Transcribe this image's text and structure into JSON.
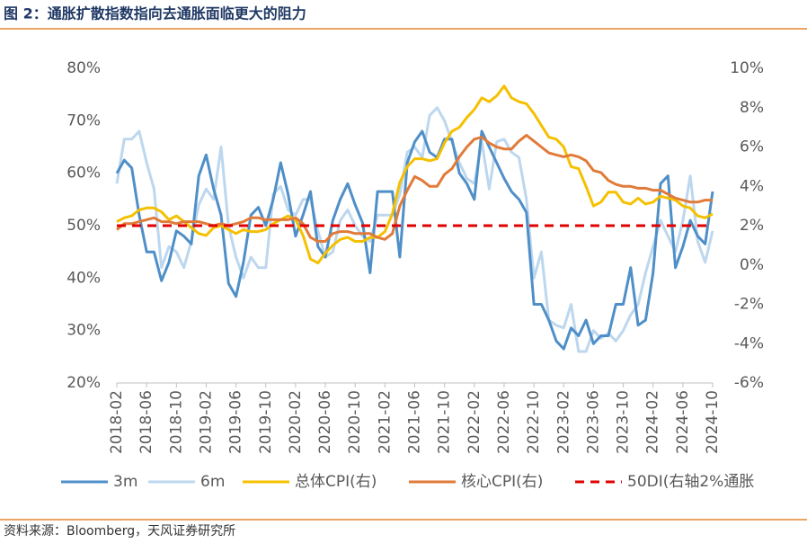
{
  "chart_data": {
    "type": "line",
    "title": "图 2：通胀扩散指数指向去通胀面临更大的阻力",
    "source": "资料来源：Bloomberg，天风证券研究所",
    "categories": [
      "2018-02",
      null,
      null,
      null,
      "2018-06",
      null,
      null,
      null,
      "2018-10",
      null,
      null,
      null,
      "2019-02",
      null,
      null,
      null,
      "2019-06",
      null,
      null,
      null,
      "2019-10",
      null,
      null,
      null,
      "2020-02",
      null,
      null,
      null,
      "2020-06",
      null,
      null,
      null,
      "2020-10",
      null,
      null,
      null,
      "2021-02",
      null,
      null,
      null,
      "2021-06",
      null,
      null,
      null,
      "2021-10",
      null,
      null,
      null,
      "2022-02",
      null,
      null,
      null,
      "2022-06",
      null,
      null,
      null,
      "2022-10",
      null,
      null,
      null,
      "2023-02",
      null,
      null,
      null,
      "2023-06",
      null,
      null,
      null,
      "2023-10",
      null,
      null,
      null,
      "2024-02",
      null,
      null,
      null,
      "2024-06",
      null,
      null,
      null,
      "2024-10"
    ],
    "ylim": [
      20,
      80
    ],
    "yticks": [
      {
        "value": 20,
        "label": "20%"
      },
      {
        "value": 30,
        "label": "30%"
      },
      {
        "value": 40,
        "label": "40%"
      },
      {
        "value": 50,
        "label": "50%"
      },
      {
        "value": 60,
        "label": "60%"
      },
      {
        "value": 70,
        "label": "70%"
      },
      {
        "value": 80,
        "label": "80%"
      }
    ],
    "y2lim": [
      -6,
      10
    ],
    "y2ticks": [
      {
        "value": -6,
        "label": "-6%"
      },
      {
        "value": -4,
        "label": "-4%"
      },
      {
        "value": -2,
        "label": "-2%"
      },
      {
        "value": 0,
        "label": "0%"
      },
      {
        "value": 2,
        "label": "2%"
      },
      {
        "value": 4,
        "label": "4%"
      },
      {
        "value": 6,
        "label": "6%"
      },
      {
        "value": 8,
        "label": "8%"
      },
      {
        "value": 10,
        "label": "10%"
      }
    ],
    "series": [
      {
        "name": "3m",
        "color": "#4f8fc8",
        "values": [
          60,
          62.5,
          61,
          52,
          45,
          45,
          39.5,
          43,
          49,
          48,
          46.5,
          59.5,
          63.5,
          57,
          52,
          39,
          36.5,
          43,
          52,
          53.5,
          50,
          55,
          62,
          56,
          48,
          52,
          56.5,
          46,
          44,
          51,
          55,
          58,
          54,
          50.5,
          41,
          56.5,
          56.5,
          56.5,
          44,
          62,
          66,
          68,
          64,
          63,
          66.5,
          66.5,
          60,
          58,
          55,
          68,
          65,
          62,
          59,
          56.5,
          55,
          52.5,
          35,
          35,
          32,
          28,
          26.5,
          30.5,
          29,
          32,
          27.5,
          29,
          29,
          35,
          35,
          42,
          31,
          32,
          41,
          58,
          59.5,
          42,
          46,
          51,
          48,
          46.5,
          56.5
        ]
      },
      {
        "name": "6m",
        "color": "#bdd7ee",
        "values": [
          58,
          66.5,
          66.5,
          68,
          62,
          57,
          42,
          46,
          45,
          42,
          47,
          54,
          57,
          55,
          65,
          50,
          44,
          40,
          44,
          42,
          42,
          56,
          57.5,
          53,
          52,
          55,
          55,
          49,
          44,
          45,
          51,
          53,
          50,
          48,
          47,
          52,
          52,
          52,
          56,
          64,
          65,
          63,
          71,
          72.5,
          70,
          66,
          62,
          59,
          58,
          66,
          57,
          66,
          66.5,
          64,
          63,
          55,
          40,
          45,
          32,
          31,
          30.5,
          35,
          26,
          26,
          30,
          28.5,
          29.5,
          28,
          30,
          33,
          35,
          41,
          46,
          51,
          48,
          45,
          51,
          59.5,
          47,
          43,
          49
        ]
      },
      {
        "name": "总体CPI(右)",
        "color": "#f5c000",
        "axis": "y2",
        "values": [
          2.2,
          2.4,
          2.5,
          2.8,
          2.9,
          2.9,
          2.7,
          2.3,
          2.5,
          2.2,
          1.9,
          1.6,
          1.5,
          1.9,
          2.0,
          1.8,
          1.6,
          1.8,
          1.7,
          1.7,
          1.8,
          2.1,
          2.3,
          2.5,
          2.3,
          1.5,
          0.3,
          0.1,
          0.6,
          1.0,
          1.3,
          1.4,
          1.2,
          1.2,
          1.4,
          1.4,
          1.7,
          2.6,
          4.2,
          5.0,
          5.4,
          5.4,
          5.3,
          5.4,
          6.2,
          6.8,
          7.0,
          7.5,
          7.9,
          8.5,
          8.3,
          8.6,
          9.1,
          8.5,
          8.3,
          8.2,
          7.7,
          7.1,
          6.5,
          6.4,
          6.0,
          5.0,
          4.9,
          4.0,
          3.0,
          3.2,
          3.7,
          3.7,
          3.2,
          3.1,
          3.4,
          3.1,
          3.2,
          3.5,
          3.4,
          3.3,
          3.0,
          2.9,
          2.5,
          2.4,
          2.6
        ]
      },
      {
        "name": "核心CPI(右)",
        "color": "#e07b39",
        "axis": "y2",
        "values": [
          1.8,
          2.1,
          2.1,
          2.2,
          2.3,
          2.4,
          2.2,
          2.2,
          2.1,
          2.2,
          2.2,
          2.2,
          2.1,
          2.0,
          2.1,
          2.0,
          2.1,
          2.2,
          2.4,
          2.4,
          2.3,
          2.3,
          2.3,
          2.3,
          2.4,
          2.1,
          1.4,
          1.2,
          1.2,
          1.6,
          1.7,
          1.7,
          1.6,
          1.6,
          1.6,
          1.4,
          1.3,
          1.6,
          3.0,
          3.8,
          4.5,
          4.3,
          4.0,
          4.0,
          4.6,
          4.9,
          5.5,
          6.0,
          6.4,
          6.5,
          6.2,
          6.0,
          5.9,
          5.9,
          6.3,
          6.6,
          6.3,
          6.0,
          5.7,
          5.6,
          5.5,
          5.6,
          5.5,
          5.3,
          4.8,
          4.7,
          4.3,
          4.1,
          4.0,
          4.0,
          3.9,
          3.9,
          3.8,
          3.8,
          3.6,
          3.4,
          3.3,
          3.2,
          3.2,
          3.3,
          3.3
        ]
      },
      {
        "name": "50DI(右轴2%通胀",
        "color": "#e00000",
        "axis": "y2",
        "dashed": true,
        "values": [
          2,
          2,
          2,
          2,
          2,
          2,
          2,
          2,
          2,
          2,
          2,
          2,
          2,
          2,
          2,
          2,
          2,
          2,
          2,
          2,
          2,
          2,
          2,
          2,
          2,
          2,
          2,
          2,
          2,
          2,
          2,
          2,
          2,
          2,
          2,
          2,
          2,
          2,
          2,
          2,
          2,
          2,
          2,
          2,
          2,
          2,
          2,
          2,
          2,
          2,
          2,
          2,
          2,
          2,
          2,
          2,
          2,
          2,
          2,
          2,
          2,
          2,
          2,
          2,
          2,
          2,
          2,
          2,
          2,
          2,
          2,
          2,
          2,
          2,
          2,
          2,
          2,
          2,
          2,
          2,
          2
        ]
      }
    ]
  }
}
